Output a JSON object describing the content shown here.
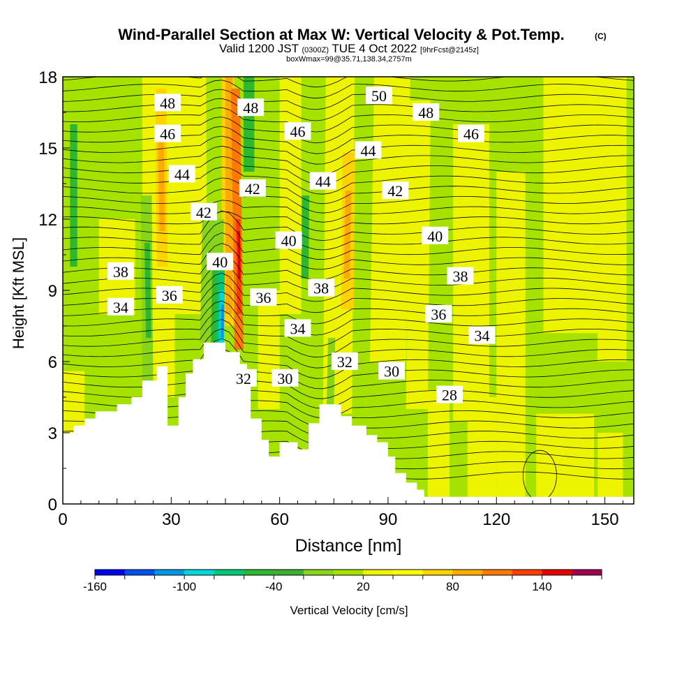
{
  "chart_data": {
    "type": "heatmap",
    "title": "Wind-Parallel Section at Max W: Vertical Velocity & Pot.Temp.",
    "title_mark": "(C)",
    "subtitle_main": "Valid 1200 JST",
    "subtitle_utc": "(0300Z)",
    "subtitle_date": "TUE 4 Oct 2022",
    "subtitle_fcst": "[9hrFcst@2145z]",
    "subtitle2": "boxWmax=99@35.71,138.34,2757m",
    "xlabel": "Distance [nm]",
    "ylabel": "Height [Kft MSL]",
    "xlim": [
      0,
      158
    ],
    "ylim": [
      0,
      18
    ],
    "x_ticks": [
      0,
      30,
      60,
      90,
      120,
      150
    ],
    "y_ticks": [
      0,
      3,
      6,
      9,
      12,
      15,
      18
    ],
    "colorbar": {
      "label": "Vertical Velocity [cm/s]",
      "tick_labels": [
        "-160",
        "-100",
        "-40",
        "20",
        "80",
        "140"
      ],
      "tick_values": [
        -160,
        -100,
        -40,
        20,
        80,
        140
      ],
      "levels": [
        -160,
        -140,
        -120,
        -100,
        -80,
        -60,
        -40,
        -20,
        0,
        20,
        40,
        60,
        80,
        100,
        120,
        140,
        160,
        180
      ],
      "colors": [
        "#0000ee",
        "#0050f0",
        "#0096e6",
        "#00d8d8",
        "#00c878",
        "#2db830",
        "#3cb030",
        "#88d418",
        "#a6e200",
        "#eef400",
        "#ffff00",
        "#ffd200",
        "#ffaa00",
        "#ff7800",
        "#ff3c00",
        "#e60000",
        "#a00050",
        "#6a0090"
      ]
    },
    "theta_contour_labels": [
      {
        "text": "48",
        "x": 29,
        "y": 16.9
      },
      {
        "text": "46",
        "x": 29,
        "y": 15.6
      },
      {
        "text": "44",
        "x": 33,
        "y": 13.9
      },
      {
        "text": "42",
        "x": 39,
        "y": 12.3
      },
      {
        "text": "40",
        "x": 43.5,
        "y": 10.2
      },
      {
        "text": "38",
        "x": 16,
        "y": 9.8
      },
      {
        "text": "36",
        "x": 29.5,
        "y": 8.8
      },
      {
        "text": "34",
        "x": 16,
        "y": 8.3
      },
      {
        "text": "48",
        "x": 52,
        "y": 16.7
      },
      {
        "text": "42",
        "x": 52.5,
        "y": 13.3
      },
      {
        "text": "36",
        "x": 55.5,
        "y": 8.7
      },
      {
        "text": "32",
        "x": 50,
        "y": 5.3
      },
      {
        "text": "46",
        "x": 65,
        "y": 15.7
      },
      {
        "text": "44",
        "x": 72,
        "y": 13.6
      },
      {
        "text": "40",
        "x": 62.5,
        "y": 11.1
      },
      {
        "text": "38",
        "x": 71.5,
        "y": 9.1
      },
      {
        "text": "34",
        "x": 65,
        "y": 7.4
      },
      {
        "text": "30",
        "x": 61.5,
        "y": 5.3
      },
      {
        "text": "50",
        "x": 87.5,
        "y": 17.2
      },
      {
        "text": "44",
        "x": 84.5,
        "y": 14.9
      },
      {
        "text": "42",
        "x": 92,
        "y": 13.2
      },
      {
        "text": "32",
        "x": 78,
        "y": 6.0
      },
      {
        "text": "30",
        "x": 91,
        "y": 5.6
      },
      {
        "text": "48",
        "x": 100.5,
        "y": 16.5
      },
      {
        "text": "46",
        "x": 113,
        "y": 15.6
      },
      {
        "text": "40",
        "x": 103,
        "y": 11.3
      },
      {
        "text": "38",
        "x": 110,
        "y": 9.6
      },
      {
        "text": "36",
        "x": 104,
        "y": 8.0
      },
      {
        "text": "34",
        "x": 116,
        "y": 7.1
      },
      {
        "text": "28",
        "x": 107,
        "y": 4.6
      }
    ],
    "terrain_kft": [
      [
        0,
        3.0
      ],
      [
        3,
        3.0
      ],
      [
        3,
        3.3
      ],
      [
        6,
        3.3
      ],
      [
        6,
        3.6
      ],
      [
        9,
        3.6
      ],
      [
        9,
        3.9
      ],
      [
        15,
        3.9
      ],
      [
        15,
        4.2
      ],
      [
        19,
        4.2
      ],
      [
        19,
        4.5
      ],
      [
        22,
        4.5
      ],
      [
        22,
        5.2
      ],
      [
        26,
        5.2
      ],
      [
        26,
        5.8
      ],
      [
        29,
        5.8
      ],
      [
        29,
        3.3
      ],
      [
        32,
        3.3
      ],
      [
        32,
        4.5
      ],
      [
        34,
        4.5
      ],
      [
        34,
        5.5
      ],
      [
        36,
        5.5
      ],
      [
        36,
        6.1
      ],
      [
        39,
        6.1
      ],
      [
        39,
        6.8
      ],
      [
        45,
        6.8
      ],
      [
        45,
        6.4
      ],
      [
        49,
        6.4
      ],
      [
        49,
        5.9
      ],
      [
        51,
        5.9
      ],
      [
        51,
        5.2
      ],
      [
        52,
        5.2
      ],
      [
        52,
        3.6
      ],
      [
        55,
        3.6
      ],
      [
        55,
        2.7
      ],
      [
        57,
        2.7
      ],
      [
        57,
        2.0
      ],
      [
        60,
        2.0
      ],
      [
        60,
        2.6
      ],
      [
        65,
        2.6
      ],
      [
        65,
        2.3
      ],
      [
        68,
        2.3
      ],
      [
        68,
        3.4
      ],
      [
        71,
        3.4
      ],
      [
        71,
        4.2
      ],
      [
        77,
        4.2
      ],
      [
        77,
        3.7
      ],
      [
        80,
        3.7
      ],
      [
        80,
        3.3
      ],
      [
        84,
        3.3
      ],
      [
        84,
        2.9
      ],
      [
        87,
        2.9
      ],
      [
        87,
        2.6
      ],
      [
        90,
        2.6
      ],
      [
        90,
        2.0
      ],
      [
        92,
        2.0
      ],
      [
        92,
        1.3
      ],
      [
        95,
        1.3
      ],
      [
        95,
        0.9
      ],
      [
        98,
        0.9
      ],
      [
        98,
        0.6
      ],
      [
        100,
        0.6
      ],
      [
        100,
        0.3
      ],
      [
        158,
        0.3
      ],
      [
        158,
        0
      ],
      [
        0,
        0
      ]
    ]
  }
}
